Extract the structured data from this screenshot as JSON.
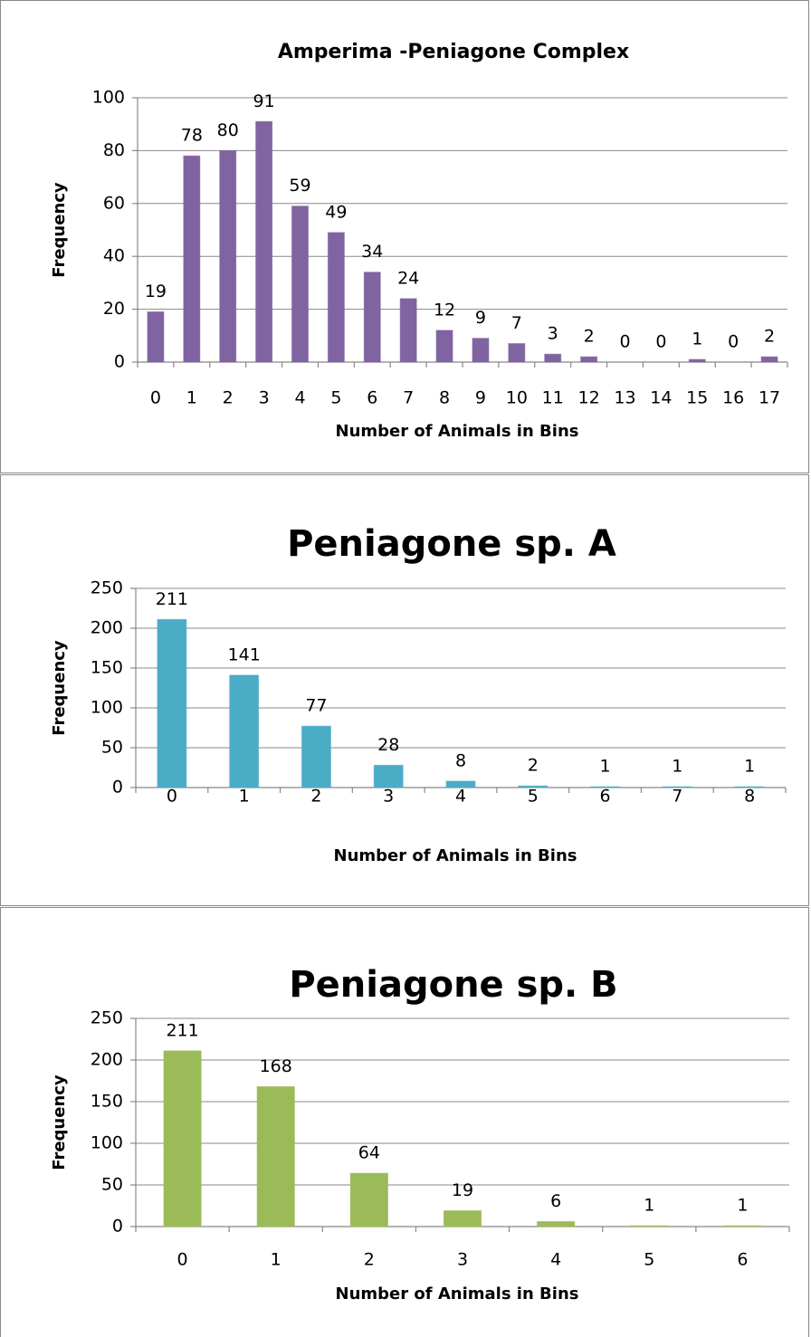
{
  "chart_data": [
    {
      "type": "bar",
      "title": "Amperima -Peniagone Complex",
      "xlabel": "Number of Animals in Bins",
      "ylabel": "Frequency",
      "categories": [
        "0",
        "1",
        "2",
        "3",
        "4",
        "5",
        "6",
        "7",
        "8",
        "9",
        "10",
        "11",
        "12",
        "13",
        "14",
        "15",
        "16",
        "17"
      ],
      "values": [
        19,
        78,
        80,
        91,
        59,
        49,
        34,
        24,
        12,
        9,
        7,
        3,
        2,
        0,
        0,
        1,
        0,
        2
      ],
      "color": "#8064a2",
      "ylim": [
        0,
        100
      ],
      "yticks": [
        0,
        20,
        40,
        60,
        80,
        100
      ],
      "grid": true
    },
    {
      "type": "bar",
      "title": "Peniagone sp. A",
      "xlabel": "Number of Animals in Bins",
      "ylabel": "Frequency",
      "categories": [
        "0",
        "1",
        "2",
        "3",
        "4",
        "5",
        "6",
        "7",
        "8"
      ],
      "values": [
        211,
        141,
        77,
        28,
        8,
        2,
        1,
        1,
        1
      ],
      "color": "#4bacc6",
      "ylim": [
        0,
        250
      ],
      "yticks": [
        0,
        50,
        100,
        150,
        200,
        250
      ],
      "grid": true
    },
    {
      "type": "bar",
      "title": "Peniagone sp. B",
      "xlabel": "Number of Animals in Bins",
      "ylabel": "Frequency",
      "categories": [
        "0",
        "1",
        "2",
        "3",
        "4",
        "5",
        "6"
      ],
      "values": [
        211,
        168,
        64,
        19,
        6,
        1,
        1
      ],
      "color": "#9bbb59",
      "ylim": [
        0,
        250
      ],
      "yticks": [
        0,
        50,
        100,
        150,
        200,
        250
      ],
      "grid": true
    }
  ]
}
